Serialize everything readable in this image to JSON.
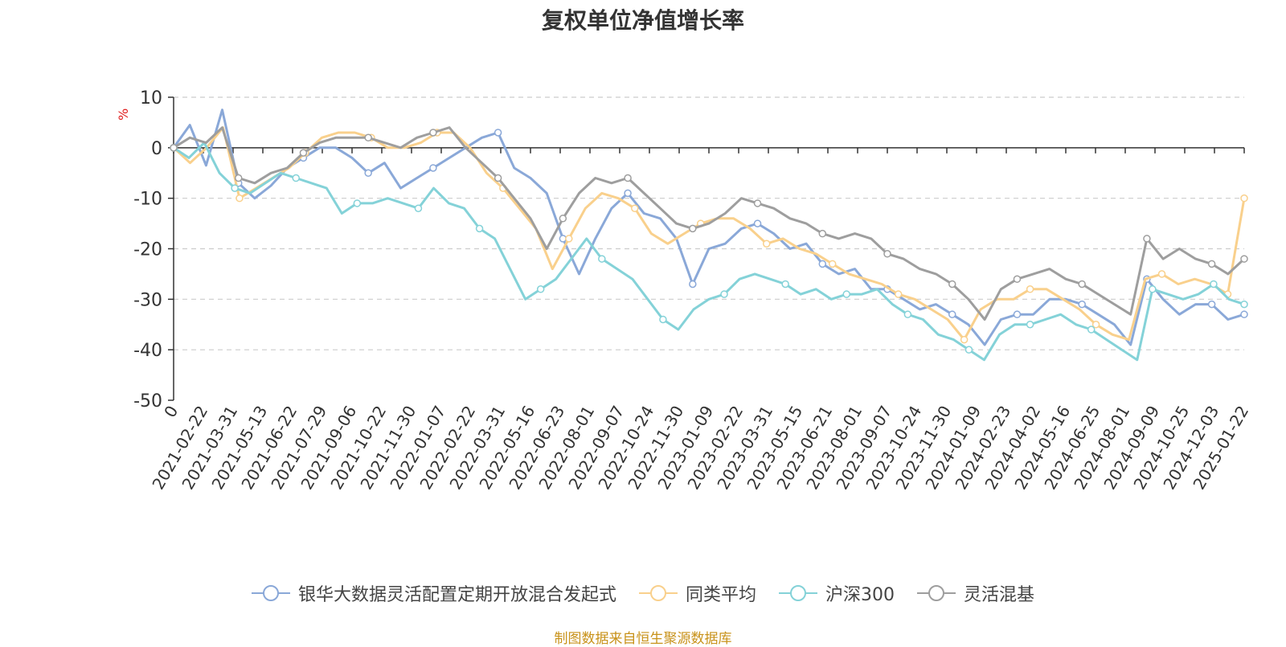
{
  "chart_data": {
    "type": "line",
    "title": "复权单位净值增长率",
    "ylabel": "%",
    "ylim": [
      -50,
      10
    ],
    "yticks": [
      10,
      0,
      -10,
      -20,
      -30,
      -40,
      -50
    ],
    "grid": true,
    "legend_position": "bottom",
    "x_tick_labels": [
      "0",
      "2021-02-22",
      "2021-03-31",
      "2021-05-13",
      "2021-06-22",
      "2021-07-29",
      "2021-09-06",
      "2021-10-22",
      "2021-11-30",
      "2022-01-07",
      "2022-02-22",
      "2022-03-31",
      "2022-05-16",
      "2022-06-23",
      "2022-08-01",
      "2022-09-07",
      "2022-10-24",
      "2022-11-30",
      "2023-01-09",
      "2023-02-22",
      "2023-03-31",
      "2023-05-15",
      "2023-06-21",
      "2023-08-01",
      "2023-09-07",
      "2023-10-24",
      "2023-11-30",
      "2024-01-09",
      "2024-02-23",
      "2024-04-02",
      "2024-05-16",
      "2024-06-25",
      "2024-08-01",
      "2024-09-09",
      "2024-10-25",
      "2024-12-03",
      "2025-01-22"
    ],
    "series": [
      {
        "name": "银华大数据灵活配置定期开放混合发起式",
        "color": "#8aa8d8",
        "values": [
          0,
          4.5,
          -3.5,
          7.5,
          -7,
          -10,
          -7.5,
          -4,
          -2,
          0,
          0,
          -2,
          -5,
          -3,
          -8,
          -6,
          -4,
          -2,
          0,
          2,
          3,
          -4,
          -6,
          -9,
          -18,
          -25,
          -18,
          -12,
          -9,
          -13,
          -14,
          -18,
          -27,
          -20,
          -19,
          -16,
          -15,
          -17,
          -20,
          -19,
          -23,
          -25,
          -24,
          -28,
          -28,
          -30,
          -32,
          -31,
          -33,
          -35,
          -39,
          -34,
          -33,
          -33,
          -30,
          -30,
          -31,
          -33,
          -35,
          -39,
          -26,
          -30,
          -33,
          -31,
          -31,
          -34,
          -33
        ]
      },
      {
        "name": "同类平均",
        "color": "#f9d08c",
        "values": [
          0,
          -3,
          0,
          4,
          -10,
          -8,
          -6,
          -4,
          -1,
          2,
          3,
          3,
          2,
          0,
          0,
          1,
          3,
          3,
          0,
          -5,
          -8,
          -12,
          -16,
          -24,
          -18,
          -12,
          -9,
          -10,
          -12,
          -17,
          -19,
          -17,
          -15,
          -14,
          -14,
          -16,
          -19,
          -18,
          -20,
          -21,
          -23,
          -25,
          -26,
          -27,
          -29,
          -30,
          -32,
          -34,
          -38,
          -32,
          -30,
          -30,
          -28,
          -28,
          -30,
          -32,
          -35,
          -37,
          -38,
          -26,
          -25,
          -27,
          -26,
          -27,
          -29,
          -10
        ]
      },
      {
        "name": "沪深300",
        "color": "#84d2d8",
        "values": [
          0,
          -2,
          1,
          -5,
          -8,
          -9,
          -7,
          -5,
          -6,
          -7,
          -8,
          -13,
          -11,
          -11,
          -10,
          -11,
          -12,
          -8,
          -11,
          -12,
          -16,
          -18,
          -24,
          -30,
          -28,
          -26,
          -22,
          -18,
          -22,
          -24,
          -26,
          -30,
          -34,
          -36,
          -32,
          -30,
          -29,
          -26,
          -25,
          -26,
          -27,
          -29,
          -28,
          -30,
          -29,
          -29,
          -28,
          -31,
          -33,
          -34,
          -37,
          -38,
          -40,
          -42,
          -37,
          -35,
          -35,
          -34,
          -33,
          -35,
          -36,
          -38,
          -40,
          -42,
          -28,
          -29,
          -30,
          -29,
          -27,
          -30,
          -31
        ]
      },
      {
        "name": "灵活混基",
        "color": "#9e9e9e",
        "values": [
          0,
          2,
          1,
          4,
          -6,
          -7,
          -5,
          -4,
          -1,
          1,
          2,
          2,
          2,
          1,
          0,
          2,
          3,
          4,
          0,
          -3,
          -6,
          -10,
          -14,
          -20,
          -14,
          -9,
          -6,
          -7,
          -6,
          -9,
          -12,
          -15,
          -16,
          -15,
          -13,
          -10,
          -11,
          -12,
          -14,
          -15,
          -17,
          -18,
          -17,
          -18,
          -21,
          -22,
          -24,
          -25,
          -27,
          -30,
          -34,
          -28,
          -26,
          -25,
          -24,
          -26,
          -27,
          -29,
          -31,
          -33,
          -18,
          -22,
          -20,
          -22,
          -23,
          -25,
          -22
        ]
      }
    ]
  },
  "legend": {
    "items": [
      {
        "label": "银华大数据灵活配置定期开放混合发起式",
        "color": "#8aa8d8"
      },
      {
        "label": "同类平均",
        "color": "#f9d08c"
      },
      {
        "label": "沪深300",
        "color": "#84d2d8"
      },
      {
        "label": "灵活混基",
        "color": "#9e9e9e"
      }
    ]
  },
  "source": "制图数据来自恒生聚源数据库"
}
